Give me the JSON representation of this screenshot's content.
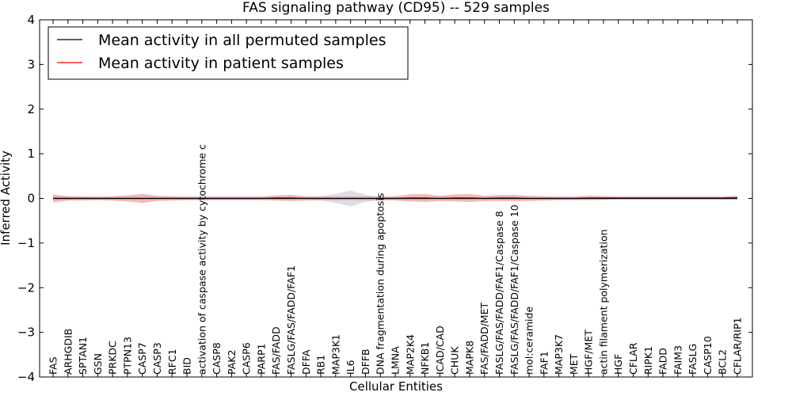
{
  "chart_data": {
    "type": "line",
    "title": "FAS signaling pathway (CD95) -- 529 samples",
    "xlabel": "Cellular Entities",
    "ylabel": "Inferred Activity",
    "ylim": [
      -4,
      4
    ],
    "yticks": [
      -4,
      -3,
      -2,
      -1,
      0,
      1,
      2,
      3,
      4
    ],
    "ytick_labels": [
      "−4",
      "−3",
      "−2",
      "−1",
      "0",
      "1",
      "2",
      "3",
      "4"
    ],
    "grid": false,
    "legend_position": "top-left",
    "colors": {
      "permuted": "#000000",
      "patient": "#ff0000",
      "patient_band": "#f08080",
      "permuted_band": "#b4b4c8"
    },
    "categories": [
      "FAS",
      "ARHGDIB",
      "SPTAN1",
      "GSN",
      "PRKDC",
      "PTPN13",
      "CASP7",
      "CASP3",
      "RFC1",
      "BID",
      "activation of caspase activity by cytochrome c",
      "CASP8",
      "PAK2",
      "CASP6",
      "PARP1",
      "FAS/FADD",
      "FASLG/FAS/FADD/FAF1",
      "DFFA",
      "RB1",
      "MAP3K1",
      "IL6",
      "DFFB",
      "DNA fragmentation during apoptosis",
      "LMNA",
      "MAP2K4",
      "NFKB1",
      "ICAD/CAD",
      "CHUK",
      "MAPK8",
      "FAS/FADD/MET",
      "FASLG/FAS/FADD/FAF1/Caspase 8",
      "FASLG/FAS/FADD/FAF1/Caspase 10",
      "mol:ceramide",
      "FAF1",
      "MAP3K7",
      "MET",
      "HGF/MET",
      "actin filament polymerization",
      "HGF",
      "CFLAR",
      "RIPK1",
      "FADD",
      "FAIM3",
      "FASLG",
      "CASP10",
      "BCL2",
      "CFLAR/RIP1"
    ],
    "series": [
      {
        "name": "Mean activity in all permuted samples",
        "color": "#000000",
        "values": [
          0,
          0,
          0,
          0,
          0,
          0,
          0,
          0,
          0,
          0,
          0,
          0,
          0,
          0,
          0,
          0,
          0,
          0,
          0,
          0,
          0,
          0,
          0,
          0,
          0,
          0,
          0,
          0,
          0,
          0,
          0,
          0,
          0,
          0,
          0,
          0,
          0,
          0,
          0,
          0,
          0,
          0,
          0,
          0,
          0,
          0,
          0
        ],
        "spread": [
          0.04,
          0.04,
          0.03,
          0.03,
          0.03,
          0.03,
          0.03,
          0.03,
          0.03,
          0.03,
          0.03,
          0.03,
          0.03,
          0.03,
          0.03,
          0.03,
          0.03,
          0.03,
          0.05,
          0.1,
          0.18,
          0.08,
          0.04,
          0.03,
          0.03,
          0.03,
          0.03,
          0.03,
          0.03,
          0.03,
          0.03,
          0.03,
          0.03,
          0.03,
          0.03,
          0.03,
          0.03,
          0.03,
          0.03,
          0.03,
          0.03,
          0.03,
          0.03,
          0.03,
          0.03,
          0.03,
          0.04
        ]
      },
      {
        "name": "Mean activity in patient samples",
        "color": "#ff0000",
        "values": [
          0,
          0,
          0,
          0,
          0,
          0,
          0,
          0,
          0,
          0,
          0,
          0,
          0,
          0,
          0,
          0.01,
          0.01,
          0,
          0,
          0,
          0,
          0,
          0,
          0,
          0.01,
          0.01,
          0,
          0.01,
          0.01,
          0,
          0.01,
          0.01,
          0,
          0,
          0,
          0,
          0.01,
          0.01,
          0.01,
          0.01,
          0.01,
          0.01,
          0.01,
          0.01,
          0.01,
          0.01,
          0.02
        ],
        "spread": [
          0.09,
          0.05,
          0.05,
          0.04,
          0.05,
          0.07,
          0.1,
          0.06,
          0.05,
          0.04,
          0.04,
          0.04,
          0.04,
          0.04,
          0.04,
          0.06,
          0.07,
          0.05,
          0.04,
          0.04,
          0.04,
          0.04,
          0.04,
          0.05,
          0.08,
          0.09,
          0.06,
          0.08,
          0.09,
          0.06,
          0.07,
          0.07,
          0.06,
          0.05,
          0.04,
          0.04,
          0.05,
          0.04,
          0.03,
          0.03,
          0.03,
          0.03,
          0.03,
          0.03,
          0.03,
          0.03,
          0.04
        ]
      }
    ]
  }
}
